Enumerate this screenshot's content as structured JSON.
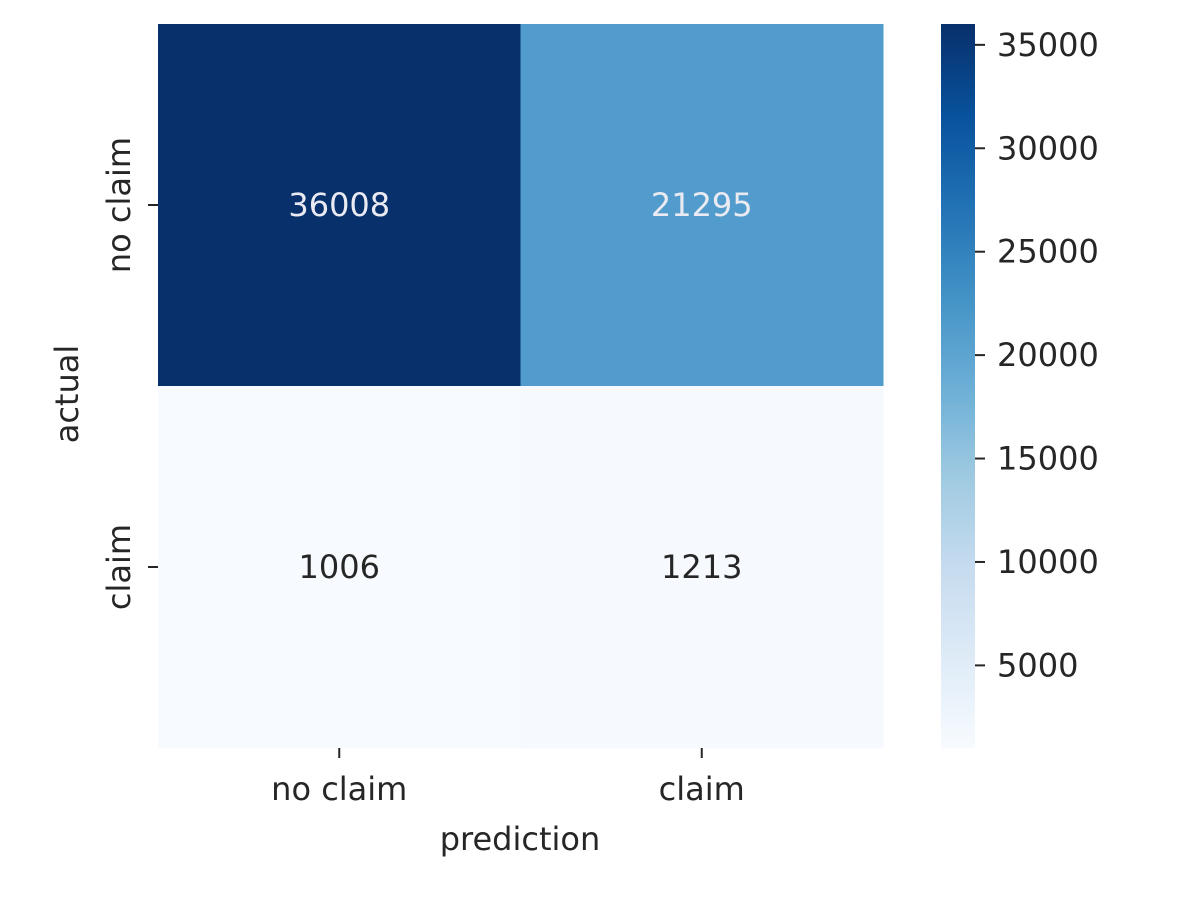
{
  "chart_data": {
    "type": "heatmap",
    "title": "",
    "xlabel": "prediction",
    "ylabel": "actual",
    "x_categories": [
      "no claim",
      "claim"
    ],
    "y_categories": [
      "no claim",
      "claim"
    ],
    "values": [
      [
        36008,
        21295
      ],
      [
        1006,
        1213
      ]
    ],
    "colormap": "Blues",
    "colorbar": {
      "min": 1006,
      "max": 36008,
      "ticks": [
        5000,
        10000,
        15000,
        20000,
        25000,
        30000,
        35000
      ]
    },
    "colors": {
      "low": "#f7fbff",
      "high": "#08306b"
    }
  }
}
